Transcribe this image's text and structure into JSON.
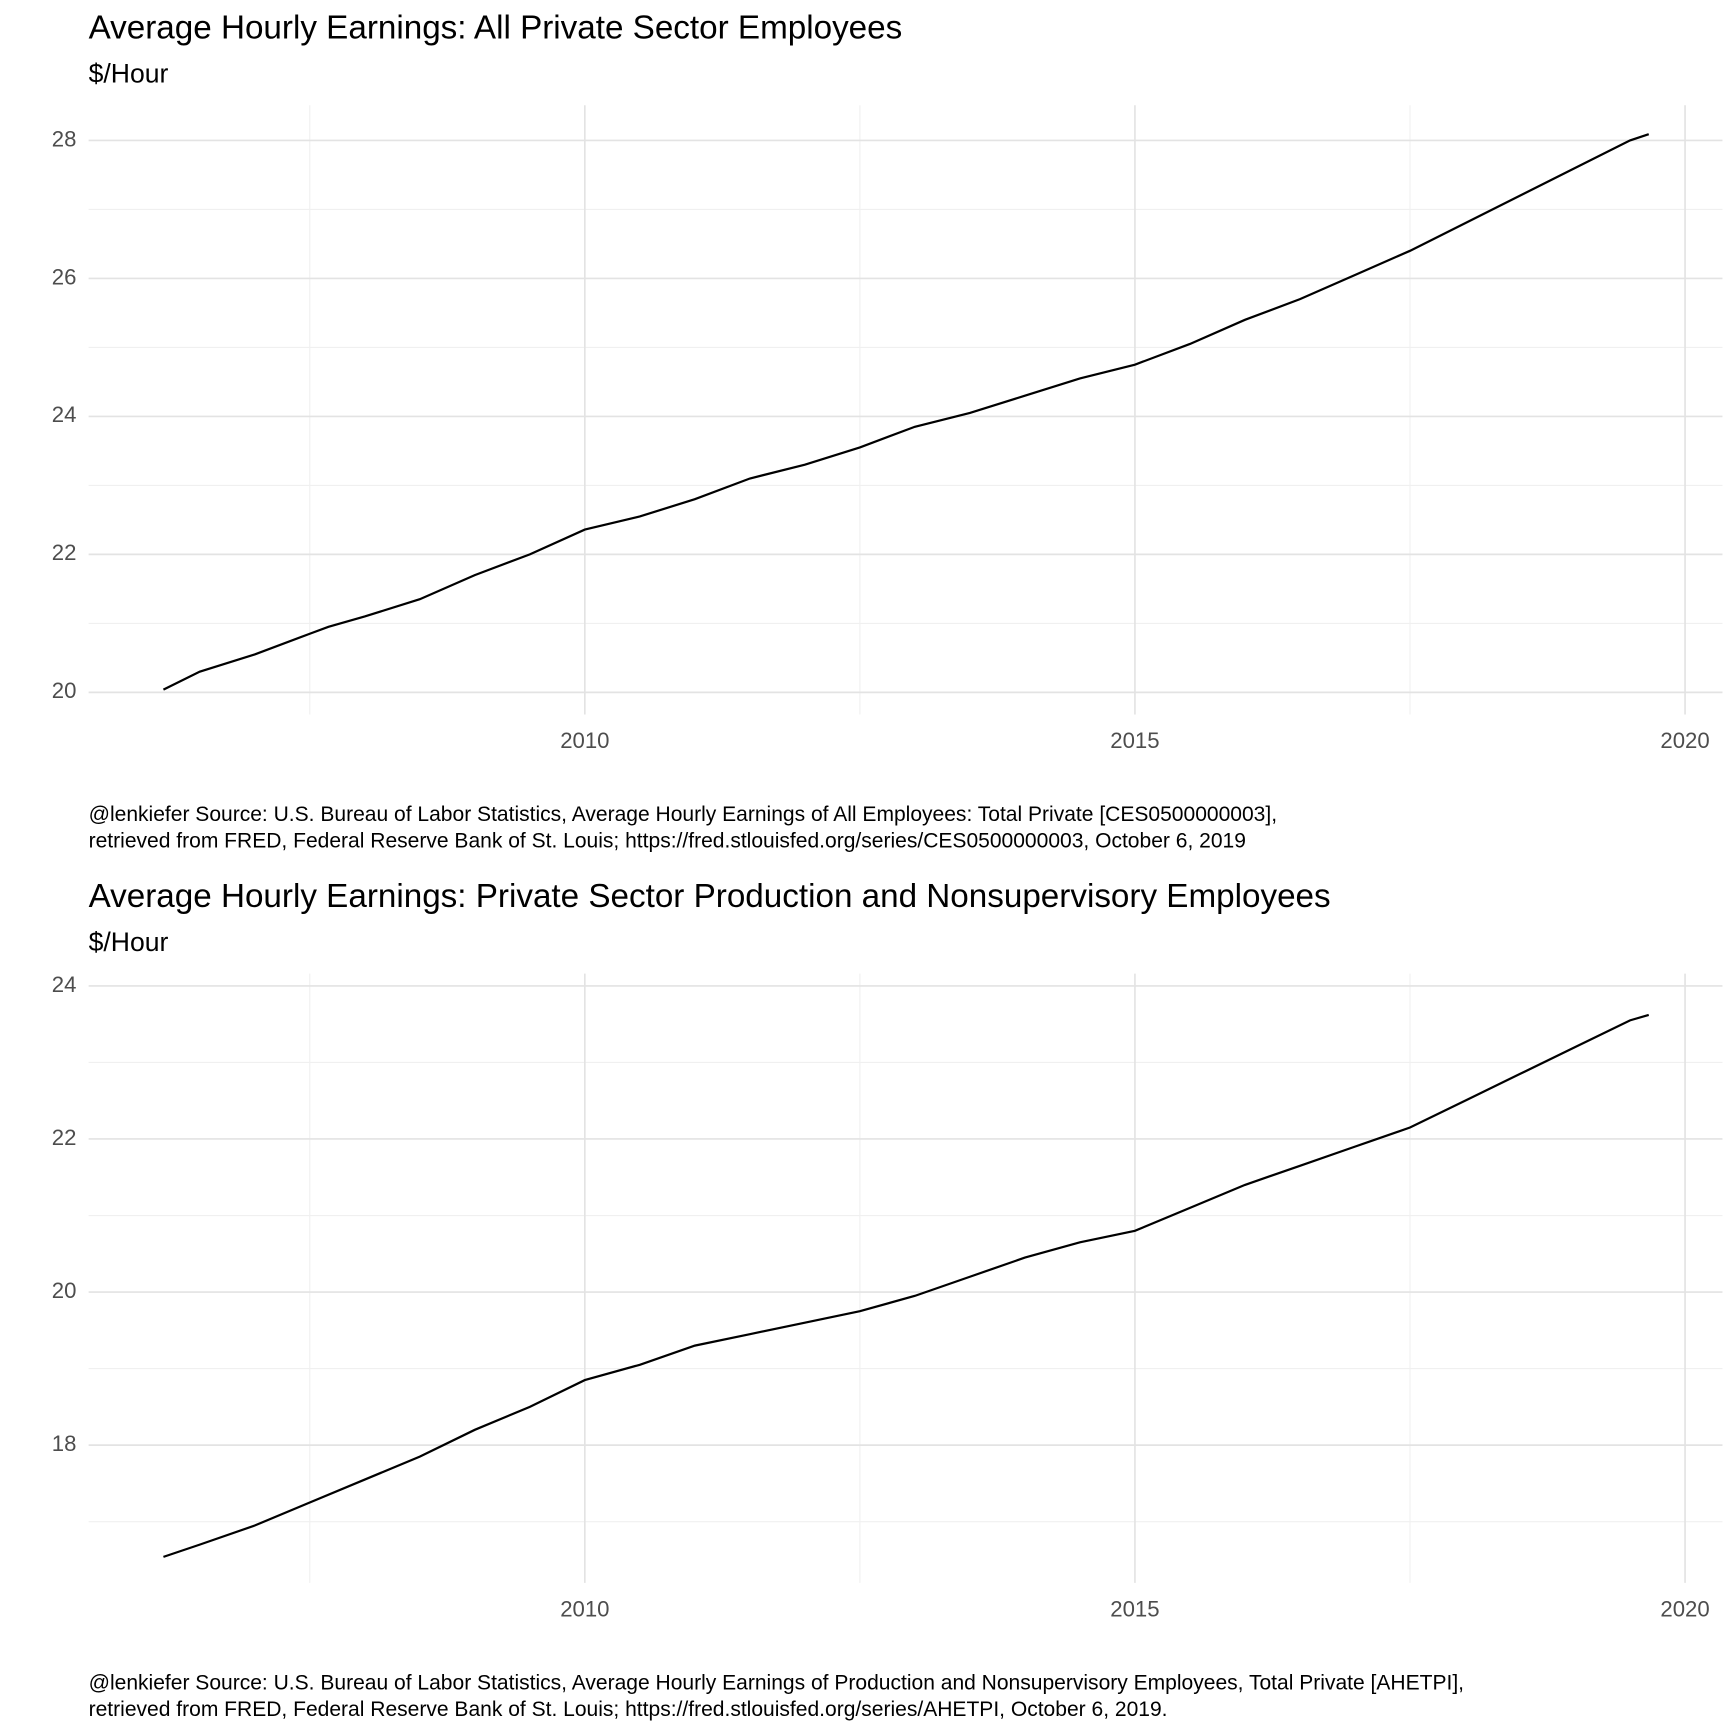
{
  "chart_data": [
    {
      "type": "line",
      "title": "Average Hourly Earnings: All Private Sector Employees",
      "subtitle": "$/Hour",
      "caption": [
        "@lenkiefer Source: U.S. Bureau of Labor Statistics, Average Hourly Earnings of All Employees: Total Private [CES0500000003],",
        "retrieved from FRED, Federal Reserve Bank of St. Louis; https://fred.stlouisfed.org/series/CES0500000003, October 6, 2019"
      ],
      "x": [
        2006.17,
        2006.5,
        2007.0,
        2007.5,
        2007.67,
        2008.0,
        2008.5,
        2009.0,
        2009.5,
        2010.0,
        2010.5,
        2011.0,
        2011.5,
        2012.0,
        2012.5,
        2013.0,
        2013.5,
        2014.0,
        2014.5,
        2015.0,
        2015.5,
        2016.0,
        2016.5,
        2017.0,
        2017.5,
        2018.0,
        2018.5,
        2019.0,
        2019.5,
        2019.67
      ],
      "values": [
        20.04,
        20.3,
        20.55,
        20.85,
        20.95,
        21.1,
        21.35,
        21.7,
        22.0,
        22.36,
        22.55,
        22.8,
        23.1,
        23.3,
        23.55,
        23.85,
        24.05,
        24.3,
        24.55,
        24.75,
        25.05,
        25.4,
        25.7,
        26.05,
        26.4,
        26.8,
        27.2,
        27.6,
        28.0,
        28.09
      ],
      "color": "#000000",
      "xlim": [
        2005.49,
        2020.34
      ],
      "ylim": [
        19.68,
        28.51
      ],
      "xticks": [
        2010,
        2015,
        2020
      ],
      "yticks": [
        20,
        22,
        24,
        26,
        28
      ],
      "minor_xticks": [
        2007.5,
        2012.5,
        2017.5
      ],
      "minor_yticks": [
        21,
        23,
        25,
        27
      ],
      "grid": true
    },
    {
      "type": "line",
      "title": "Average Hourly Earnings: Private Sector Production and Nonsupervisory Employees",
      "subtitle": "$/Hour",
      "caption": [
        "@lenkiefer Source: U.S. Bureau of Labor Statistics, Average Hourly Earnings of Production and Nonsupervisory Employees, Total Private [AHETPI],",
        "retrieved from FRED, Federal Reserve Bank of St. Louis; https://fred.stlouisfed.org/series/AHETPI, October 6, 2019."
      ],
      "x": [
        2006.17,
        2006.5,
        2007.0,
        2007.5,
        2008.0,
        2008.5,
        2009.0,
        2009.5,
        2010.0,
        2010.5,
        2011.0,
        2011.5,
        2012.0,
        2012.5,
        2013.0,
        2013.5,
        2014.0,
        2014.5,
        2015.0,
        2015.5,
        2016.0,
        2016.5,
        2017.0,
        2017.5,
        2018.0,
        2018.5,
        2019.0,
        2019.5,
        2019.67
      ],
      "values": [
        16.54,
        16.7,
        16.95,
        17.25,
        17.55,
        17.85,
        18.2,
        18.5,
        18.85,
        19.05,
        19.3,
        19.45,
        19.6,
        19.75,
        19.95,
        20.2,
        20.45,
        20.65,
        20.8,
        21.1,
        21.4,
        21.65,
        21.9,
        22.15,
        22.5,
        22.85,
        23.2,
        23.55,
        23.62
      ],
      "color": "#000000",
      "xlim": [
        2005.49,
        2020.34
      ],
      "ylim": [
        16.2,
        24.16
      ],
      "xticks": [
        2010,
        2015,
        2020
      ],
      "yticks": [
        18,
        20,
        22,
        24
      ],
      "minor_xticks": [
        2007.5,
        2012.5,
        2017.5
      ],
      "minor_yticks": [
        17,
        19,
        21,
        23
      ],
      "grid": true
    }
  ]
}
